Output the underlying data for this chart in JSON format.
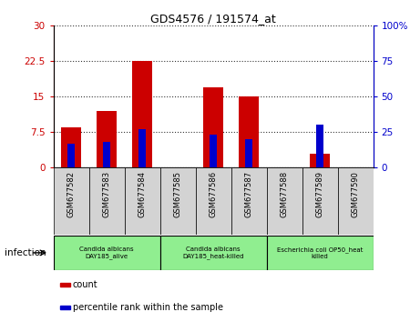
{
  "title": "GDS4576 / 191574_at",
  "samples": [
    "GSM677582",
    "GSM677583",
    "GSM677584",
    "GSM677585",
    "GSM677586",
    "GSM677587",
    "GSM677588",
    "GSM677589",
    "GSM677590"
  ],
  "count_values": [
    8.5,
    12.0,
    22.5,
    0,
    17.0,
    15.0,
    0,
    3.0,
    0
  ],
  "percentile_values": [
    17,
    18,
    27,
    0,
    23,
    20,
    0,
    30,
    0
  ],
  "ylim_left": [
    0,
    30
  ],
  "ylim_right": [
    0,
    100
  ],
  "yticks_left": [
    0,
    7.5,
    15,
    22.5,
    30
  ],
  "yticks_right": [
    0,
    25,
    50,
    75,
    100
  ],
  "ytick_labels_left": [
    "0",
    "7.5",
    "15",
    "22.5",
    "30"
  ],
  "ytick_labels_right": [
    "0",
    "25",
    "50",
    "75",
    "100%"
  ],
  "groups": [
    {
      "label": "Candida albicans\nDAY185_alive",
      "start": 0,
      "end": 2
    },
    {
      "label": "Candida albicans\nDAY185_heat-killed",
      "start": 3,
      "end": 5
    },
    {
      "label": "Escherichia coli OP50_heat\nkilled",
      "start": 6,
      "end": 8
    }
  ],
  "group_label": "infection",
  "bar_color": "#CC0000",
  "percentile_color": "#0000CC",
  "green_color": "#90EE90",
  "gray_color": "#D3D3D3",
  "legend_items": [
    {
      "color": "#CC0000",
      "label": "count"
    },
    {
      "color": "#0000CC",
      "label": "percentile rank within the sample"
    }
  ]
}
